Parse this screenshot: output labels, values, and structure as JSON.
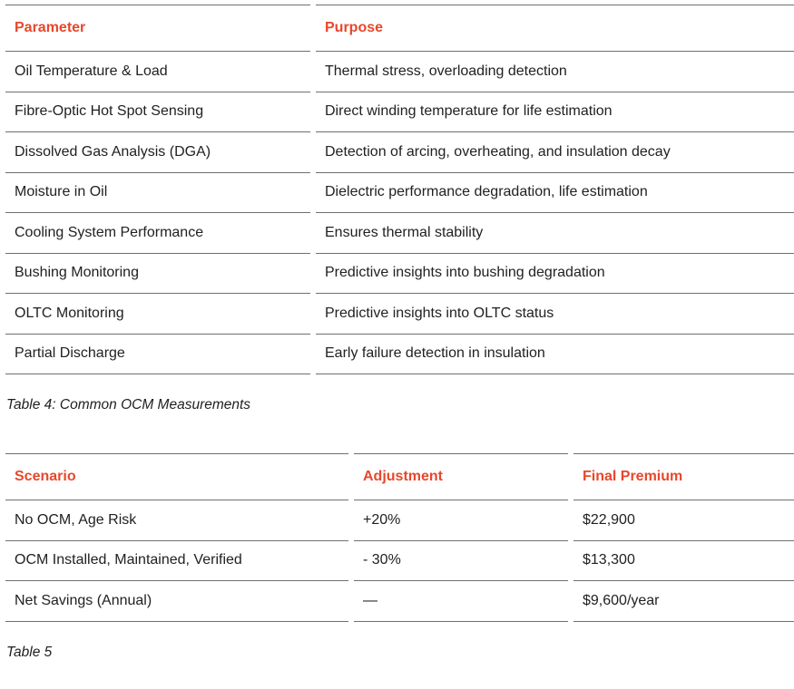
{
  "colors": {
    "accent": "#e8472b",
    "border": "#6f6f6f",
    "text": "#212121"
  },
  "table1": {
    "columns": [
      "Parameter",
      "Purpose"
    ],
    "rows": [
      [
        "Oil Temperature & Load",
        "Thermal stress, overloading detection"
      ],
      [
        "Fibre-Optic Hot Spot Sensing",
        "Direct winding temperature for life estimation"
      ],
      [
        "Dissolved Gas Analysis (DGA)",
        "Detection of arcing, overheating, and insulation decay"
      ],
      [
        "Moisture in Oil",
        "Dielectric performance degradation, life estimation"
      ],
      [
        "Cooling System Performance",
        "Ensures thermal stability"
      ],
      [
        "Bushing Monitoring",
        "Predictive insights into bushing degradation"
      ],
      [
        "OLTC Monitoring",
        "Predictive insights into OLTC status"
      ],
      [
        "Partial Discharge",
        "Early failure detection in insulation"
      ]
    ],
    "caption": "Table 4: Common OCM Measurements"
  },
  "table2": {
    "columns": [
      "Scenario",
      "Adjustment",
      "Final Premium"
    ],
    "rows": [
      [
        "No OCM, Age Risk",
        "+20%",
        "$22,900"
      ],
      [
        "OCM Installed, Maintained, Verified",
        "- 30%",
        "$13,300"
      ],
      [
        "Net Savings (Annual)",
        "—",
        "$9,600/year"
      ]
    ],
    "caption": "Table 5"
  }
}
